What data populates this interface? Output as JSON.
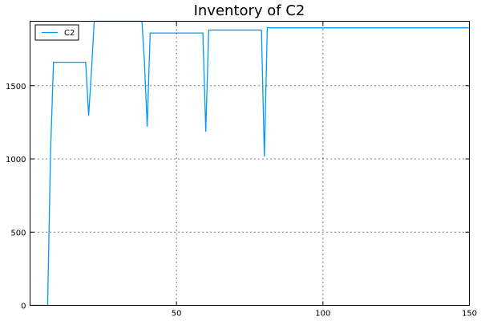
{
  "chart_data": {
    "type": "line",
    "title": "Inventory of C2",
    "xlabel": "",
    "ylabel": "",
    "xlim": [
      0,
      150
    ],
    "ylim": [
      0,
      1940
    ],
    "x_ticks": [
      50,
      100,
      150
    ],
    "y_ticks": [
      0,
      500,
      1000,
      1500
    ],
    "grid": true,
    "legend_position": "top-left",
    "series": [
      {
        "name": "C2",
        "color": "#009af9",
        "x": [
          0,
          1,
          2,
          3,
          4,
          5,
          6,
          7,
          8,
          9,
          10,
          11,
          12,
          13,
          14,
          15,
          16,
          17,
          18,
          19,
          20,
          21,
          21.9,
          38.2,
          39,
          40,
          41,
          42,
          43,
          44,
          45,
          46,
          47,
          48,
          49,
          50,
          51,
          52,
          53,
          54,
          55,
          56,
          57,
          58,
          59,
          60,
          61,
          62,
          63,
          64,
          65,
          66,
          67,
          68,
          69,
          70,
          71,
          72,
          73,
          74,
          75,
          76,
          77,
          78,
          79,
          80,
          81,
          82,
          90,
          100,
          110,
          120,
          130,
          140,
          150
        ],
        "y": [
          0,
          0,
          0,
          0,
          0,
          0,
          0,
          1050,
          1660,
          1660,
          1660,
          1660,
          1660,
          1660,
          1660,
          1660,
          1660,
          1660,
          1660,
          1660,
          1295,
          1610,
          1940,
          1940,
          1680,
          1220,
          1860,
          1860,
          1860,
          1860,
          1860,
          1860,
          1860,
          1860,
          1860,
          1860,
          1860,
          1860,
          1860,
          1860,
          1860,
          1860,
          1860,
          1860,
          1860,
          1185,
          1880,
          1880,
          1880,
          1880,
          1880,
          1880,
          1880,
          1880,
          1880,
          1880,
          1880,
          1880,
          1880,
          1880,
          1880,
          1880,
          1880,
          1880,
          1880,
          1015,
          1895,
          1895,
          1895,
          1895,
          1895,
          1895,
          1895,
          1895,
          1895
        ]
      }
    ]
  }
}
